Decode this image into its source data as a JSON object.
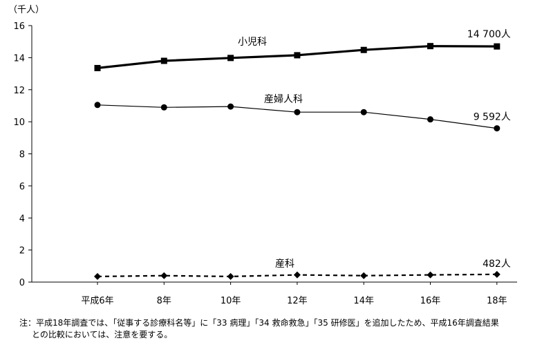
{
  "chart_data": {
    "type": "line",
    "y_unit_label": "（千人）",
    "ylim": [
      0,
      16
    ],
    "yticks": [
      "0",
      "2",
      "4",
      "6",
      "8",
      "10",
      "12",
      "14",
      "16"
    ],
    "categories": [
      "平成6年",
      "8年",
      "10年",
      "12年",
      "14年",
      "16年",
      "18年"
    ],
    "grid": false,
    "series": [
      {
        "name": "小児科",
        "values": [
          13.35,
          13.8,
          13.98,
          14.15,
          14.48,
          14.72,
          14.7
        ],
        "end_label": "14 700人",
        "marker": "square",
        "line": "solid-thick",
        "color": "#000000"
      },
      {
        "name": "産婦人科",
        "values": [
          11.05,
          10.9,
          10.95,
          10.6,
          10.6,
          10.15,
          9.592
        ],
        "end_label": "9 592人",
        "marker": "circle",
        "line": "solid-thin",
        "color": "#000000"
      },
      {
        "name": "産科",
        "values": [
          0.35,
          0.4,
          0.35,
          0.45,
          0.4,
          0.45,
          0.482
        ],
        "end_label": "482人",
        "marker": "diamond",
        "line": "dashed",
        "color": "#000000"
      }
    ]
  },
  "notes": {
    "line1": "注：平成18年調査では、「従事する診療科名等」に「33 病理」「34 救命救急」「35 研修医」を追加したため、平成16年調査結果",
    "line2": "との比較においては、注意を要する。"
  }
}
